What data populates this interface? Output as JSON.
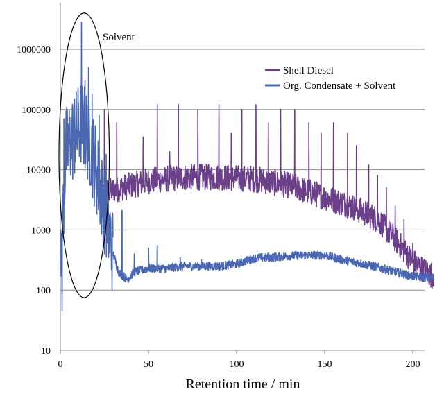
{
  "chart_data": {
    "type": "line",
    "title": "",
    "xlabel": "Retention time / min",
    "ylabel": "",
    "xlim": [
      0,
      215
    ],
    "ylim": [
      10,
      6000000
    ],
    "yscale": "log",
    "grid": {
      "y": true,
      "x": false
    },
    "x_ticks": [
      "0",
      "50",
      "100",
      "150",
      "200"
    ],
    "x_tick_values": [
      0,
      50,
      100,
      150,
      200
    ],
    "y_ticks": [
      "10",
      "100",
      "1000",
      "10000",
      "100000",
      "1000000"
    ],
    "y_tick_values": [
      10,
      100,
      1000,
      10000,
      100000,
      1000000
    ],
    "legend_position": "top-right",
    "annotation": {
      "text": "Solvent",
      "x_range": [
        0,
        27
      ],
      "y_range": [
        75,
        4000000
      ]
    },
    "series": [
      {
        "name": "Shell Diesel",
        "color": "#6b3f8a",
        "baseline": [
          [
            22,
            4000
          ],
          [
            35,
            5000
          ],
          [
            50,
            6500
          ],
          [
            70,
            7500
          ],
          [
            90,
            7500
          ],
          [
            110,
            7000
          ],
          [
            130,
            5500
          ],
          [
            150,
            3500
          ],
          [
            165,
            2500
          ],
          [
            180,
            1500
          ],
          [
            190,
            700
          ],
          [
            200,
            300
          ],
          [
            210,
            180
          ]
        ],
        "peaks": [
          [
            25,
            100000
          ],
          [
            32,
            60000
          ],
          [
            47,
            35000
          ],
          [
            55,
            120000
          ],
          [
            62,
            20000
          ],
          [
            67,
            120000
          ],
          [
            78,
            100000
          ],
          [
            90,
            120000
          ],
          [
            97,
            40000
          ],
          [
            103,
            100000
          ],
          [
            111,
            120000
          ],
          [
            118,
            60000
          ],
          [
            125,
            100000
          ],
          [
            133,
            100000
          ],
          [
            141,
            60000
          ],
          [
            148,
            40000
          ],
          [
            155,
            60000
          ],
          [
            163,
            40000
          ],
          [
            168,
            25000
          ],
          [
            175,
            12000
          ],
          [
            180,
            8000
          ],
          [
            185,
            5000
          ],
          [
            190,
            2500
          ],
          [
            195,
            1500
          ],
          [
            200,
            600
          ]
        ]
      },
      {
        "name": "Org. Condensate + Solvent",
        "color": "#4a67b2",
        "baseline": [
          [
            0,
            150
          ],
          [
            3,
            20000
          ],
          [
            6,
            30000
          ],
          [
            9,
            40000
          ],
          [
            12,
            60000
          ],
          [
            15,
            40000
          ],
          [
            18,
            20000
          ],
          [
            21,
            8000
          ],
          [
            24,
            3000
          ],
          [
            27,
            1200
          ],
          [
            30,
            400
          ],
          [
            33,
            200
          ],
          [
            38,
            150
          ],
          [
            42,
            200
          ],
          [
            50,
            230
          ],
          [
            60,
            230
          ],
          [
            70,
            250
          ],
          [
            80,
            250
          ],
          [
            90,
            250
          ],
          [
            100,
            270
          ],
          [
            110,
            340
          ],
          [
            120,
            350
          ],
          [
            130,
            370
          ],
          [
            140,
            380
          ],
          [
            150,
            380
          ],
          [
            160,
            320
          ],
          [
            170,
            280
          ],
          [
            180,
            240
          ],
          [
            190,
            200
          ],
          [
            200,
            170
          ],
          [
            210,
            160
          ]
        ],
        "peaks": [
          [
            1,
            45
          ],
          [
            2,
            70000
          ],
          [
            5,
            75000
          ],
          [
            8,
            150000
          ],
          [
            10,
            200000
          ],
          [
            12,
            2800000
          ],
          [
            14,
            300000
          ],
          [
            16,
            500000
          ],
          [
            18,
            180000
          ],
          [
            22,
            80000
          ],
          [
            26,
            18000
          ],
          [
            35,
            2100
          ],
          [
            42,
            400
          ],
          [
            50,
            500
          ],
          [
            55,
            550
          ],
          [
            68,
            350
          ],
          [
            80,
            320
          ],
          [
            92,
            280
          ],
          [
            118,
            420
          ],
          [
            132,
            420
          ],
          [
            145,
            400
          ]
        ]
      }
    ]
  }
}
